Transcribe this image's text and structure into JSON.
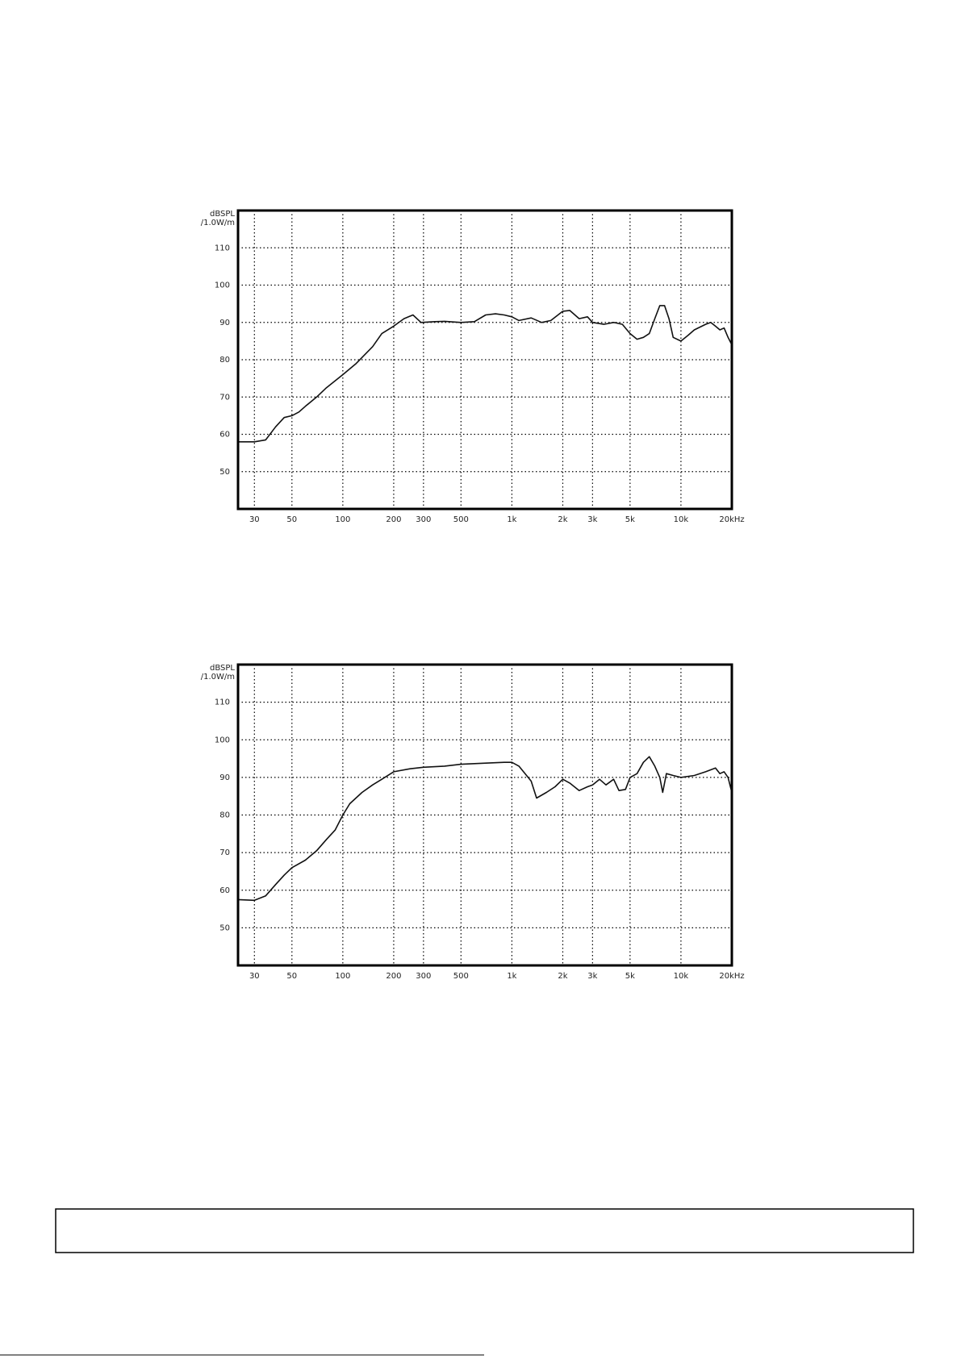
{
  "chart_data": [
    {
      "type": "line",
      "ylabel_lines": [
        "dBSPL",
        "/1.0W/m"
      ],
      "log_x": true,
      "grid": true,
      "color": "#111111",
      "xlim": [
        24,
        20000
      ],
      "ylim": [
        40,
        120
      ],
      "xticks": [
        30,
        50,
        100,
        200,
        300,
        500,
        {
          "value": 1000,
          "label": "1k"
        },
        {
          "value": 2000,
          "label": "2k"
        },
        {
          "value": 3000,
          "label": "3k"
        },
        {
          "value": 5000,
          "label": "5k"
        },
        {
          "value": 10000,
          "label": "10k"
        },
        {
          "value": 20000,
          "label": "20kHz"
        }
      ],
      "yticks": [
        50,
        60,
        70,
        80,
        90,
        100,
        110
      ],
      "x": [
        24,
        30,
        35,
        40,
        45,
        50,
        55,
        60,
        70,
        80,
        100,
        120,
        150,
        170,
        200,
        230,
        260,
        290,
        350,
        400,
        500,
        600,
        700,
        800,
        900,
        1000,
        1100,
        1300,
        1500,
        1700,
        2000,
        2200,
        2500,
        2800,
        3000,
        3500,
        4000,
        4500,
        5000,
        5500,
        6000,
        6500,
        7000,
        7500,
        8000,
        8500,
        9000,
        10000,
        11000,
        12000,
        14000,
        15000,
        16000,
        17000,
        18000,
        19000,
        20000
      ],
      "values": [
        58,
        58,
        58.5,
        62,
        64.5,
        65,
        66,
        67.5,
        70,
        72.5,
        76,
        79,
        83.5,
        87,
        89,
        91,
        92,
        90,
        90.2,
        90.3,
        90,
        90.2,
        92,
        92.3,
        92,
        91.5,
        90.5,
        91.2,
        90,
        90.5,
        93,
        93.2,
        91,
        91.5,
        90,
        89.5,
        90,
        89.5,
        87,
        85.5,
        86,
        87,
        91,
        94.5,
        94.5,
        91,
        86,
        85,
        86.5,
        88,
        89.5,
        90,
        89,
        88,
        88.5,
        86,
        84
      ]
    },
    {
      "type": "line",
      "ylabel_lines": [
        "dBSPL",
        "/1.0W/m"
      ],
      "log_x": true,
      "grid": true,
      "color": "#111111",
      "xlim": [
        24,
        20000
      ],
      "ylim": [
        40,
        120
      ],
      "xticks": [
        30,
        50,
        100,
        200,
        300,
        500,
        {
          "value": 1000,
          "label": "1k"
        },
        {
          "value": 2000,
          "label": "2k"
        },
        {
          "value": 3000,
          "label": "3k"
        },
        {
          "value": 5000,
          "label": "5k"
        },
        {
          "value": 10000,
          "label": "10k"
        },
        {
          "value": 20000,
          "label": "20kHz"
        }
      ],
      "yticks": [
        50,
        60,
        70,
        80,
        90,
        100,
        110
      ],
      "x": [
        24,
        30,
        35,
        40,
        45,
        50,
        60,
        70,
        80,
        90,
        100,
        110,
        130,
        150,
        170,
        200,
        250,
        300,
        400,
        500,
        700,
        900,
        1000,
        1100,
        1300,
        1400,
        1600,
        1800,
        2000,
        2200,
        2500,
        2800,
        3000,
        3300,
        3600,
        4000,
        4300,
        4700,
        5000,
        5500,
        6000,
        6500,
        7000,
        7500,
        7800,
        8200,
        9000,
        10000,
        12000,
        14000,
        16000,
        17000,
        18000,
        19000,
        20000
      ],
      "values": [
        57.5,
        57.3,
        58.5,
        61.5,
        64,
        66,
        68,
        70.5,
        73.5,
        76,
        80,
        83,
        86,
        88,
        89.5,
        91.5,
        92.3,
        92.7,
        93,
        93.5,
        93.8,
        94,
        94,
        93,
        89,
        84.5,
        86,
        87.5,
        89.5,
        88.5,
        86.5,
        87.5,
        88,
        89.5,
        88,
        89.5,
        86.5,
        86.8,
        90,
        91,
        94,
        95.5,
        93,
        90,
        86,
        91,
        90.5,
        90,
        90.5,
        91.5,
        92.5,
        91,
        91.5,
        90,
        86
      ]
    }
  ]
}
